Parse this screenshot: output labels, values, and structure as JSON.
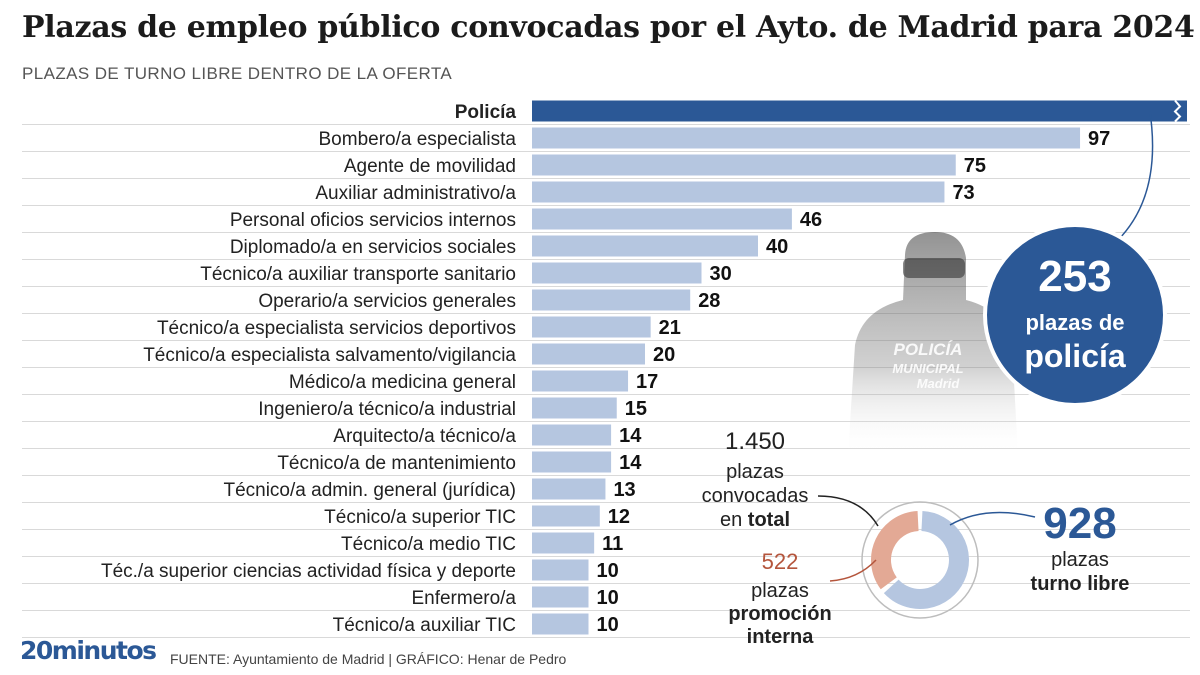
{
  "header": {
    "title": "Plazas de empleo público convocadas por el Ayto. de Madrid para 2024",
    "subtitle": "PLAZAS DE TURNO LIBRE DENTRO DE LA OFERTA"
  },
  "callout": {
    "value": "253",
    "line1": "plazas de",
    "line2": "policía"
  },
  "donut": {
    "total_value": "1.450",
    "total_line1": "plazas",
    "total_line2": "convocadas",
    "total_line3a": "en ",
    "total_line3b": "total",
    "promo_value": "522",
    "promo_line1": "plazas",
    "promo_line2": "promoción",
    "promo_line3": "interna",
    "free_value": "928",
    "free_line1": "plazas",
    "free_line2": "turno libre",
    "promo_color": "#e3a995",
    "free_color": "#b5c6e0"
  },
  "footer": {
    "logo": "20minutos",
    "source": "FUENTE: Ayuntamiento de Madrid  |  GRÁFICO: Henar de Pedro"
  },
  "illustration": {
    "badge_line1": "POLICÍA",
    "badge_line2": "MUNICIPAL",
    "badge_line3": "Madrid"
  },
  "chart_data": {
    "type": "bar",
    "orientation": "horizontal",
    "title": "Plazas de empleo público convocadas por el Ayto. de Madrid para 2024",
    "subtitle": "PLAZAS DE TURNO LIBRE DENTRO DE LA OFERTA",
    "categories": [
      "Policía",
      "Bombero/a especialista",
      "Agente de movilidad",
      "Auxiliar administrativo/a",
      "Personal oficios servicios internos",
      "Diplomado/a en servicios sociales",
      "Técnico/a auxiliar transporte sanitario",
      "Operario/a servicios generales",
      "Técnico/a especialista servicios deportivos",
      "Técnico/a especialista salvamento/vigilancia",
      "Médico/a medicina general",
      "Ingeniero/a técnico/a industrial",
      "Arquitecto/a técnico/a",
      "Técnico/a de mantenimiento",
      "Técnico/a admin. general (jurídica)",
      "Técnico/a superior TIC",
      "Técnico/a medio TIC",
      "Téc./a superior ciencias actividad física y deporte",
      "Enfermero/a",
      "Técnico/a auxiliar TIC"
    ],
    "values": [
      253,
      97,
      75,
      73,
      46,
      40,
      30,
      28,
      21,
      20,
      17,
      15,
      14,
      14,
      13,
      12,
      11,
      10,
      10,
      10
    ],
    "value_labels": [
      "",
      "97",
      "75",
      "73",
      "46",
      "40",
      "30",
      "28",
      "21",
      "20",
      "17",
      "15",
      "14",
      "14",
      "13",
      "12",
      "11",
      "10",
      "10",
      "10"
    ],
    "broken_axis_category": "Policía",
    "highlight_category": "Policía",
    "bar_color": "#b5c6e0",
    "highlight_color": "#2b5896",
    "grid": true
  }
}
